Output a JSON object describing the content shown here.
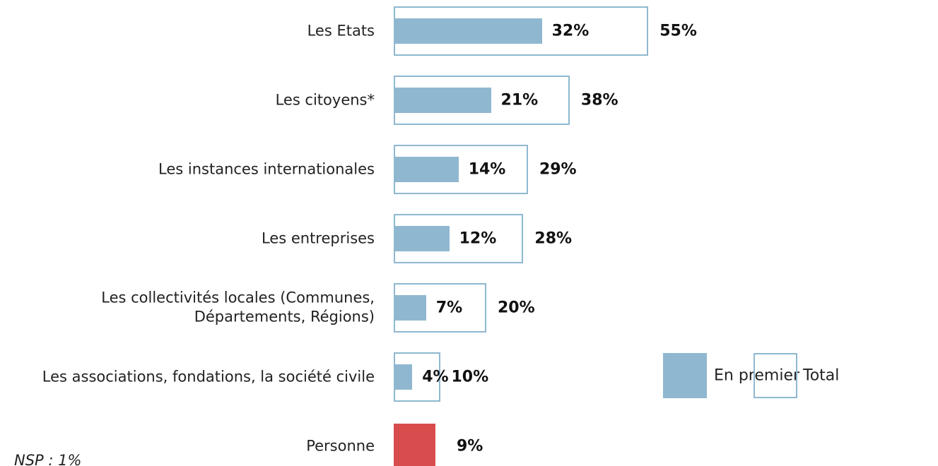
{
  "chart_data": {
    "type": "bar",
    "categories": [
      "Les Etats",
      "Les citoyens*",
      "Les instances internationales",
      "Les entreprises",
      "Les collectivités locales (Communes, Départements, Régions)",
      "Les associations, fondations, la société civile",
      "Personne"
    ],
    "series": [
      {
        "name": "En premier",
        "color": "#8fb8d0",
        "colors": [
          "#8fb8d0",
          "#8fb8d0",
          "#8fb8d0",
          "#8fb8d0",
          "#8fb8d0",
          "#8fb8d0",
          "#d94c4e"
        ],
        "values": [
          32,
          21,
          14,
          12,
          7,
          4,
          9
        ],
        "value_labels": [
          "32%",
          "21%",
          "14%",
          "12%",
          "7%",
          "4%",
          "9%"
        ]
      },
      {
        "name": "Total",
        "color": "#8fb8d0",
        "values": [
          55,
          38,
          29,
          28,
          20,
          10,
          null
        ],
        "value_labels": [
          "55%",
          "38%",
          "29%",
          "28%",
          "20%",
          "10%",
          null
        ]
      }
    ],
    "legend": "right",
    "annotations": [
      "NSP : 1%"
    ]
  }
}
